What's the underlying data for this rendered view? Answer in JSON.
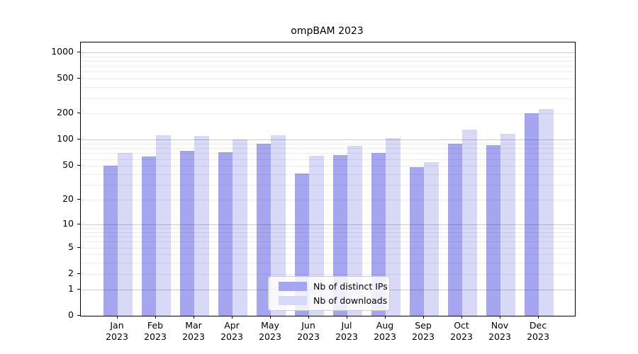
{
  "title": "ompBAM 2023",
  "chart_data": {
    "type": "bar",
    "title": "ompBAM 2023",
    "yscale": "log1p",
    "grid": true,
    "legend_position": "lower-center",
    "categories": [
      "Jan 2023",
      "Feb 2023",
      "Mar 2023",
      "Apr 2023",
      "May 2023",
      "Jun 2023",
      "Jul 2023",
      "Aug 2023",
      "Sep 2023",
      "Oct 2023",
      "Nov 2023",
      "Dec 2023"
    ],
    "series": [
      {
        "name": "Nb of distinct IPs",
        "color": "#a6a6f0",
        "values": [
          50,
          64,
          75,
          72,
          90,
          41,
          67,
          70,
          48,
          90,
          87,
          200
        ]
      },
      {
        "name": "Nb of downloads",
        "color": "#d8d8f7",
        "values": [
          70,
          113,
          110,
          101,
          112,
          65,
          85,
          104,
          55,
          130,
          117,
          224
        ]
      }
    ],
    "yticks": [
      1000,
      500,
      200,
      100,
      50,
      20,
      10,
      5,
      2,
      1,
      0
    ],
    "ylim": [
      0,
      1300
    ]
  },
  "legend": {
    "items": [
      "Nb of distinct IPs",
      "Nb of downloads"
    ]
  },
  "colors": {
    "distinct_ips": "#a6a6f0",
    "downloads": "#d8d8f7",
    "spine": "#000000",
    "grid_minor": "#ebebeb",
    "grid_major": "#c9c9c9"
  }
}
